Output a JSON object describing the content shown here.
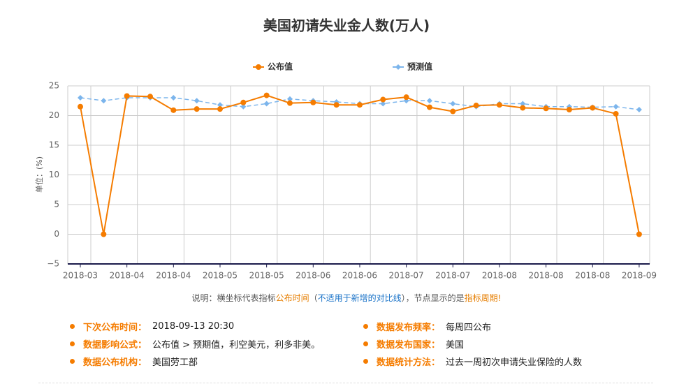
{
  "chart_data": {
    "type": "line",
    "title": "美国初请失业金人数(万人)",
    "y_label": "单位：(%)",
    "categories": [
      "2018-03",
      null,
      "2018-04",
      null,
      "2018-04",
      null,
      "2018-05",
      null,
      "2018-05",
      null,
      "2018-06",
      null,
      "2018-06",
      null,
      "2018-07",
      null,
      "2018-07",
      null,
      "2018-08",
      null,
      "2018-08",
      null,
      "2018-08",
      null,
      "2018-09"
    ],
    "series": [
      {
        "name": "公布值",
        "color": "#f57c00",
        "dashed": false,
        "marker": "circle",
        "values": [
          21.5,
          0,
          23.3,
          23.2,
          20.9,
          21.1,
          21.1,
          22.2,
          23.4,
          22.1,
          22.2,
          21.8,
          21.8,
          22.7,
          23.1,
          21.4,
          20.7,
          21.7,
          21.8,
          21.3,
          21.2,
          21.0,
          21.3,
          20.3,
          0
        ]
      },
      {
        "name": "预测值",
        "color": "#7cb5ec",
        "dashed": true,
        "marker": "diamond",
        "values": [
          23,
          22.5,
          23,
          23,
          23,
          22.5,
          21.8,
          21.5,
          22,
          22.8,
          22.5,
          22.3,
          22,
          22,
          22.5,
          22.5,
          22,
          21.5,
          22,
          22,
          21.5,
          21.5,
          21.4,
          21.5,
          21
        ]
      }
    ],
    "ylim": [
      -5,
      25
    ],
    "yticks": [
      {
        "value": -5,
        "label": "−5"
      },
      0,
      5,
      10,
      15,
      20,
      25
    ],
    "grid": true,
    "legend": "top"
  },
  "note": [
    "说明：横坐标代表指标",
    "公布时间",
    "（",
    "不适用于新增的对比线",
    "），节点显示的是",
    "指标周期",
    "!"
  ],
  "info": [
    {
      "label": "下次公布时间：",
      "value": "2018-09-13 20:30"
    },
    {
      "label": "数据发布频率：",
      "value": "每周四公布"
    },
    {
      "label": "数据影响公式：",
      "value": "公布值 > 预期值，利空美元，利多非美。"
    },
    {
      "label": "数据发布国家：",
      "value": "美国"
    },
    {
      "label": "数据公布机构：",
      "value": "美国劳工部"
    },
    {
      "label": "数据统计方法：",
      "value": "过去一周初次申请失业保险的人数"
    }
  ]
}
